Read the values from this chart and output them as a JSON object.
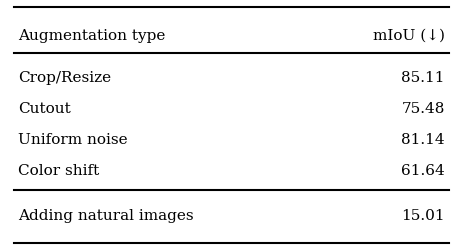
{
  "col_headers": [
    "Augmentation type",
    "mIoU (↓)"
  ],
  "rows": [
    [
      "Crop/Resize",
      "85.11"
    ],
    [
      "Cutout",
      "75.48"
    ],
    [
      "Uniform noise",
      "81.14"
    ],
    [
      "Color shift",
      "61.64"
    ]
  ],
  "bottom_row": [
    "Adding natural images",
    "15.01"
  ],
  "bg_color": "#ffffff",
  "text_color": "#000000",
  "font_size": 11
}
